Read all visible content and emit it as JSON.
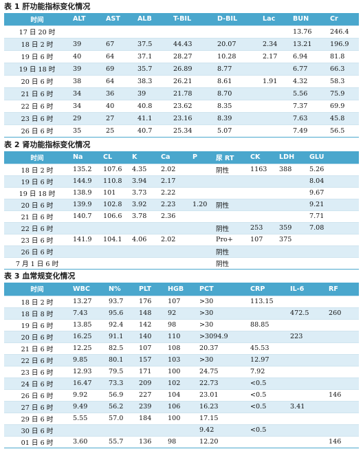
{
  "table1": {
    "caption": "表 1 肝功能指标变化情况",
    "headers": [
      "时间",
      "ALT",
      "AST",
      "ALB",
      "T-BIL",
      "D-BIL",
      "Lac",
      "BUN",
      "Cr"
    ],
    "rows": [
      [
        "17 日 20 时",
        "",
        "",
        "",
        "",
        "",
        "",
        "13.76",
        "246.4"
      ],
      [
        "18 日 2 时",
        "39",
        "67",
        "37.5",
        "44.43",
        "20.07",
        "2.34",
        "13.21",
        "196.9"
      ],
      [
        "19 日 6 时",
        "40",
        "64",
        "37.1",
        "28.27",
        "10.28",
        "2.17",
        "6.94",
        "81.8"
      ],
      [
        "19 日 18 时",
        "39",
        "69",
        "35.7",
        "26.89",
        "8.77",
        "",
        "6.77",
        "66.3"
      ],
      [
        "20 日 6 时",
        "38",
        "64",
        "38.3",
        "26.21",
        "8.61",
        "1.91",
        "4.32",
        "58.3"
      ],
      [
        "21 日 6 时",
        "34",
        "36",
        "39",
        "21.78",
        "8.70",
        "",
        "5.56",
        "75.9"
      ],
      [
        "22 日 6 时",
        "34",
        "40",
        "40.8",
        "23.62",
        "8.35",
        "",
        "7.37",
        "69.9"
      ],
      [
        "23 日 6 时",
        "29",
        "27",
        "41.1",
        "23.16",
        "8.39",
        "",
        "7.63",
        "45.8"
      ],
      [
        "26 日 6 时",
        "35",
        "25",
        "40.7",
        "25.34",
        "5.07",
        "",
        "7.49",
        "56.5"
      ]
    ]
  },
  "table2": {
    "caption": "表 2 肾功能指标变化情况",
    "headers": [
      "时间",
      "Na",
      "CL",
      "K",
      "Ca",
      "P",
      "尿 RT",
      "CK",
      "LDH",
      "GLU"
    ],
    "rows": [
      [
        "18 日 2 时",
        "135.2",
        "107.6",
        "4.35",
        "2.02",
        "",
        "阴性",
        "1163",
        "388",
        "5.26"
      ],
      [
        "19 日 6 时",
        "144.9",
        "110.8",
        "3.94",
        "2.17",
        "",
        "",
        "",
        "",
        "8.04"
      ],
      [
        "19 日 18 时",
        "138.9",
        "101",
        "3.73",
        "2.22",
        "",
        "",
        "",
        "",
        "9.67"
      ],
      [
        "20 日 6 时",
        "139.9",
        "102.8",
        "3.92",
        "2.23",
        "1.20",
        "阴性",
        "",
        "",
        "9.21"
      ],
      [
        "21 日 6 时",
        "140.7",
        "106.6",
        "3.78",
        "2.36",
        "",
        "",
        "",
        "",
        "7.71"
      ],
      [
        "22 日 6 时",
        "",
        "",
        "",
        "",
        "",
        "阴性",
        "253",
        "359",
        "7.08"
      ],
      [
        "23 日 6 时",
        "141.9",
        "104.1",
        "4.06",
        "2.02",
        "",
        "Pro+",
        "107",
        "375",
        ""
      ],
      [
        "26 日 6 时",
        "",
        "",
        "",
        "",
        "",
        "阴性",
        "",
        "",
        ""
      ],
      [
        "7 月 1 日 6 时",
        "",
        "",
        "",
        "",
        "",
        "阴性",
        "",
        "",
        ""
      ]
    ]
  },
  "table3": {
    "caption": "表 3 血常规变化情况",
    "headers": [
      "时间",
      "WBC",
      "N%",
      "PLT",
      "HGB",
      "PCT",
      "CRP",
      "IL-6",
      "RF"
    ],
    "rows": [
      [
        "18 日 2 时",
        "13.27",
        "93.7",
        "176",
        "107",
        ">30",
        "113.15",
        "",
        ""
      ],
      [
        "18 日 8 时",
        "7.43",
        "95.6",
        "148",
        "92",
        ">30",
        "",
        "472.5",
        "260"
      ],
      [
        "19 日 6 时",
        "13.85",
        "92.4",
        "142",
        "98",
        ">30",
        "88.85",
        "",
        ""
      ],
      [
        "20 日 6 时",
        "16.25",
        "91.1",
        "140",
        "110",
        ">3094.9",
        "",
        "223",
        ""
      ],
      [
        "21 日 6 时",
        "12.25",
        "82.5",
        "107",
        "108",
        "20.37",
        "45.53",
        "",
        ""
      ],
      [
        "22 日 6 时",
        "9.85",
        "80.1",
        "157",
        "103",
        ">30",
        "12.97",
        "",
        ""
      ],
      [
        "23 日 6 时",
        "12.93",
        "79.5",
        "171",
        "100",
        "24.75",
        "7.92",
        "",
        ""
      ],
      [
        "24 日 6 时",
        "16.47",
        "73.3",
        "209",
        "102",
        "22.73",
        "<0.5",
        "",
        ""
      ],
      [
        "26 日 6 时",
        "9.92",
        "56.9",
        "227",
        "104",
        "23.01",
        "<0.5",
        "",
        "146"
      ],
      [
        "27 日 6 时",
        "9.49",
        "56.2",
        "239",
        "106",
        "16.23",
        "<0.5",
        "3.41",
        ""
      ],
      [
        "29 日 6 时",
        "5.55",
        "57.0",
        "184",
        "100",
        "17.15",
        "",
        "",
        ""
      ],
      [
        "30 日 6 时",
        "",
        "",
        "",
        "",
        "9.42",
        "<0.5",
        "",
        ""
      ],
      [
        "01 日 6 时",
        "3.60",
        "55.7",
        "136",
        "98",
        "12.20",
        "",
        "",
        "146"
      ]
    ]
  }
}
